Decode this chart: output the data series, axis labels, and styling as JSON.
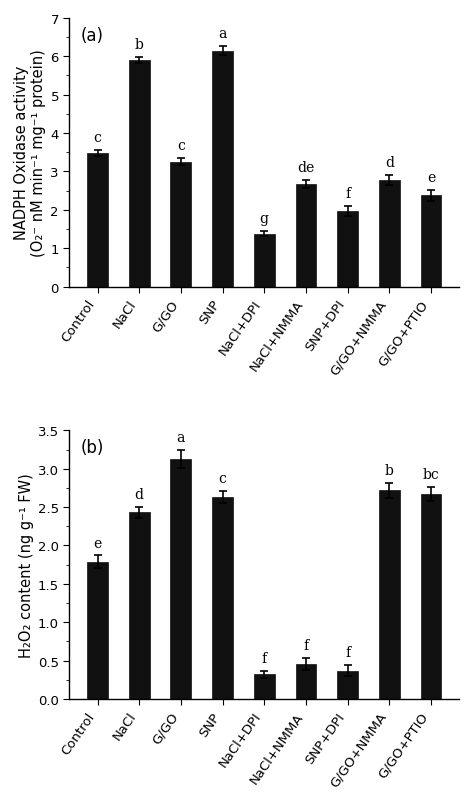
{
  "categories": [
    "Control",
    "NaCl",
    "G/GO",
    "SNP",
    "NaCl+DPI",
    "NaCl+NMMA",
    "SNP+DPI",
    "G/GO+NMMA",
    "G/GO+PTIO"
  ],
  "panel_a": {
    "values": [
      3.48,
      5.9,
      3.25,
      6.15,
      1.38,
      2.68,
      1.97,
      2.77,
      2.38
    ],
    "errors": [
      0.07,
      0.08,
      0.09,
      0.12,
      0.06,
      0.1,
      0.12,
      0.13,
      0.15
    ],
    "letters": [
      "c",
      "b",
      "c",
      "a",
      "g",
      "de",
      "f",
      "d",
      "e"
    ],
    "ylabel_line1": "NADPH Oxidase activity",
    "ylabel_line2": "(O₂⁻ nM min⁻¹ mg⁻¹ protein)",
    "ylim": [
      0,
      7
    ],
    "yticks": [
      0,
      1,
      2,
      3,
      4,
      5,
      6,
      7
    ],
    "panel_label": "(a)"
  },
  "panel_b": {
    "values": [
      1.79,
      2.43,
      3.13,
      2.63,
      0.32,
      0.46,
      0.37,
      2.72,
      2.67
    ],
    "errors": [
      0.08,
      0.07,
      0.12,
      0.08,
      0.05,
      0.08,
      0.07,
      0.1,
      0.09
    ],
    "letters": [
      "e",
      "d",
      "a",
      "c",
      "f",
      "f",
      "f",
      "b",
      "bc"
    ],
    "ylabel_line1": "H₂O₂ content (ng g⁻¹ FW)",
    "ylabel_line2": "",
    "ylim": [
      0,
      3.5
    ],
    "yticks": [
      0.0,
      0.5,
      1.0,
      1.5,
      2.0,
      2.5,
      3.0,
      3.5
    ],
    "panel_label": "(b)"
  },
  "bar_color": "#111111",
  "bar_width": 0.5,
  "tick_fontsize": 9.5,
  "label_fontsize": 10.5,
  "letter_fontsize": 10,
  "panel_label_fontsize": 12,
  "background_color": "#ffffff",
  "figsize": [
    4.73,
    8.04
  ],
  "dpi": 100
}
